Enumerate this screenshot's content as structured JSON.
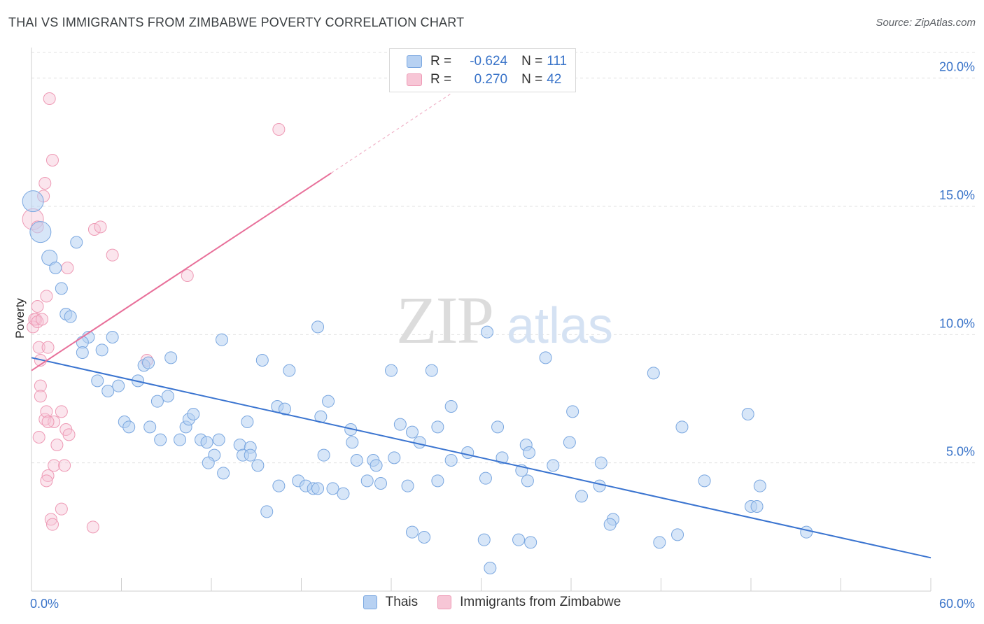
{
  "title": "THAI VS IMMIGRANTS FROM ZIMBABWE POVERTY CORRELATION CHART",
  "source": "Source: ZipAtlas.com",
  "legend_box": {
    "rows": [
      {
        "r_label": "R =",
        "r_value": "-0.624",
        "n_label": "N =",
        "n_value": "111"
      },
      {
        "r_label": "R =",
        "r_value": "0.270",
        "n_label": "N =",
        "n_value": "42"
      }
    ]
  },
  "bottom_legend": [
    "Thais",
    "Immigrants from Zimbabwe"
  ],
  "colors": {
    "blue_fill": "#b7d1f2",
    "blue_stroke": "#7aa7e0",
    "blue_line": "#3a74d0",
    "pink_fill": "#f7c6d6",
    "pink_stroke": "#ee9ab5",
    "pink_line": "#e8709a",
    "axis_label": "#3a74c9",
    "grid": "#e0e0e0"
  },
  "chart_data": {
    "type": "scatter",
    "title": "THAI VS IMMIGRANTS FROM ZIMBABWE POVERTY CORRELATION CHART",
    "ylabel": "Poverty",
    "xlim": [
      0,
      60
    ],
    "ylim": [
      0,
      21
    ],
    "x_tick_labels": [
      "0.0%",
      "60.0%"
    ],
    "y_ticks": [
      5,
      10,
      15,
      20
    ],
    "y_tick_labels": [
      "5.0%",
      "10.0%",
      "15.0%",
      "20.0%"
    ],
    "grid": "horizontal dashed",
    "legend": "top-center",
    "watermark": "ZIPatlas",
    "series": [
      {
        "name": "Thais",
        "r": -0.624,
        "n": 111,
        "trend": {
          "x0": 0,
          "y0": 9.1,
          "x1": 60,
          "y1": 1.3
        },
        "points": [
          [
            0.1,
            15.2,
            3
          ],
          [
            0.6,
            14.0,
            3
          ],
          [
            1.2,
            13.0,
            2
          ],
          [
            1.6,
            12.6,
            1
          ],
          [
            3.0,
            13.6,
            1
          ],
          [
            2.0,
            11.8,
            1
          ],
          [
            2.3,
            10.8,
            1
          ],
          [
            2.6,
            10.7,
            1
          ],
          [
            3.8,
            9.9,
            1
          ],
          [
            5.4,
            9.9,
            1
          ],
          [
            3.4,
            9.7,
            1
          ],
          [
            3.4,
            9.3,
            1
          ],
          [
            4.7,
            9.4,
            1
          ],
          [
            9.3,
            9.1,
            1
          ],
          [
            7.5,
            8.8,
            1
          ],
          [
            7.8,
            8.9,
            1
          ],
          [
            12.7,
            9.8,
            1
          ],
          [
            15.4,
            9.0,
            1
          ],
          [
            19.1,
            10.3,
            1
          ],
          [
            30.4,
            10.1,
            1
          ],
          [
            34.3,
            9.1,
            1
          ],
          [
            17.2,
            8.6,
            1
          ],
          [
            24.0,
            8.6,
            1
          ],
          [
            26.7,
            8.6,
            1
          ],
          [
            41.5,
            8.5,
            1
          ],
          [
            4.4,
            8.2,
            1
          ],
          [
            7.1,
            8.2,
            1
          ],
          [
            5.1,
            7.8,
            1
          ],
          [
            5.8,
            8.0,
            1
          ],
          [
            8.4,
            7.4,
            1
          ],
          [
            9.1,
            7.6,
            1
          ],
          [
            16.4,
            7.2,
            1
          ],
          [
            16.9,
            7.1,
            1
          ],
          [
            19.8,
            7.4,
            1
          ],
          [
            28.0,
            7.2,
            1
          ],
          [
            36.1,
            7.0,
            1
          ],
          [
            47.8,
            6.9,
            1
          ],
          [
            19.3,
            6.8,
            1
          ],
          [
            6.2,
            6.6,
            1
          ],
          [
            6.5,
            6.4,
            1
          ],
          [
            7.9,
            6.4,
            1
          ],
          [
            10.3,
            6.4,
            1
          ],
          [
            10.5,
            6.7,
            1
          ],
          [
            10.8,
            6.9,
            1
          ],
          [
            14.4,
            6.6,
            1
          ],
          [
            21.3,
            6.3,
            1
          ],
          [
            24.6,
            6.5,
            1
          ],
          [
            25.4,
            6.2,
            1
          ],
          [
            27.1,
            6.4,
            1
          ],
          [
            31.1,
            6.4,
            1
          ],
          [
            43.4,
            6.4,
            1
          ],
          [
            8.6,
            5.9,
            1
          ],
          [
            9.9,
            5.9,
            1
          ],
          [
            11.3,
            5.9,
            1
          ],
          [
            11.7,
            5.8,
            1
          ],
          [
            12.5,
            5.9,
            1
          ],
          [
            13.9,
            5.7,
            1
          ],
          [
            14.6,
            5.6,
            1
          ],
          [
            21.4,
            5.8,
            1
          ],
          [
            25.9,
            5.8,
            1
          ],
          [
            33.0,
            5.7,
            1
          ],
          [
            35.9,
            5.8,
            1
          ],
          [
            14.1,
            5.3,
            1
          ],
          [
            12.2,
            5.3,
            1
          ],
          [
            11.8,
            5.0,
            1
          ],
          [
            14.6,
            5.3,
            1
          ],
          [
            15.1,
            4.9,
            1
          ],
          [
            19.5,
            5.3,
            1
          ],
          [
            21.7,
            5.1,
            1
          ],
          [
            22.8,
            5.1,
            1
          ],
          [
            23.0,
            4.9,
            1
          ],
          [
            24.2,
            5.2,
            1
          ],
          [
            28.0,
            5.1,
            1
          ],
          [
            29.1,
            5.4,
            1
          ],
          [
            31.4,
            5.2,
            1
          ],
          [
            33.2,
            5.4,
            1
          ],
          [
            34.8,
            4.9,
            1
          ],
          [
            38.0,
            5.0,
            1
          ],
          [
            32.7,
            4.7,
            1
          ],
          [
            30.3,
            4.4,
            1
          ],
          [
            12.8,
            4.6,
            1
          ],
          [
            16.5,
            4.1,
            1
          ],
          [
            17.8,
            4.3,
            1
          ],
          [
            18.3,
            4.1,
            1
          ],
          [
            18.8,
            4.0,
            1
          ],
          [
            19.1,
            4.0,
            1
          ],
          [
            20.1,
            4.0,
            1
          ],
          [
            20.8,
            3.8,
            1
          ],
          [
            22.4,
            4.3,
            1
          ],
          [
            23.3,
            4.2,
            1
          ],
          [
            25.1,
            4.1,
            1
          ],
          [
            27.1,
            4.3,
            1
          ],
          [
            33.1,
            4.3,
            1
          ],
          [
            36.7,
            3.7,
            1
          ],
          [
            37.9,
            4.1,
            1
          ],
          [
            44.9,
            4.3,
            1
          ],
          [
            48.6,
            4.1,
            1
          ],
          [
            48.0,
            3.3,
            1
          ],
          [
            48.4,
            3.3,
            1
          ],
          [
            38.8,
            2.8,
            1
          ],
          [
            38.6,
            2.6,
            1
          ],
          [
            15.7,
            3.1,
            1
          ],
          [
            25.4,
            2.3,
            1
          ],
          [
            26.2,
            2.1,
            1
          ],
          [
            30.2,
            2.0,
            1
          ],
          [
            32.5,
            2.0,
            1
          ],
          [
            33.3,
            1.9,
            1
          ],
          [
            41.9,
            1.9,
            1
          ],
          [
            43.1,
            2.2,
            1
          ],
          [
            51.7,
            2.3,
            1
          ],
          [
            30.6,
            0.9,
            1
          ]
        ]
      },
      {
        "name": "Immigrants from Zimbabwe",
        "r": 0.27,
        "n": 42,
        "trend": {
          "x0": 0,
          "y0": 8.6,
          "x1": 20,
          "y1": 16.3,
          "dashed_to": {
            "x": 28,
            "y": 19.4
          }
        },
        "points": [
          [
            0.1,
            14.5,
            3
          ],
          [
            0.3,
            10.6,
            1
          ],
          [
            0.1,
            10.3,
            1
          ],
          [
            0.2,
            10.6,
            1
          ],
          [
            0.4,
            10.5,
            1
          ],
          [
            0.5,
            9.5,
            1
          ],
          [
            0.6,
            9.0,
            1
          ],
          [
            1.1,
            9.5,
            1
          ],
          [
            0.4,
            11.1,
            1
          ],
          [
            1.0,
            11.5,
            1
          ],
          [
            0.8,
            15.4,
            1
          ],
          [
            0.9,
            15.9,
            1
          ],
          [
            1.4,
            16.8,
            1
          ],
          [
            1.2,
            19.2,
            1
          ],
          [
            0.4,
            14.2,
            1
          ],
          [
            4.2,
            14.1,
            1
          ],
          [
            4.6,
            14.2,
            1
          ],
          [
            5.4,
            13.1,
            1
          ],
          [
            2.4,
            12.6,
            1
          ],
          [
            10.4,
            12.3,
            1
          ],
          [
            16.5,
            18.0,
            1
          ],
          [
            7.7,
            9.0,
            1
          ],
          [
            0.6,
            8.0,
            1
          ],
          [
            0.6,
            7.6,
            1
          ],
          [
            2.0,
            7.0,
            1
          ],
          [
            0.9,
            6.7,
            1
          ],
          [
            1.5,
            6.6,
            1
          ],
          [
            1.0,
            7.0,
            1
          ],
          [
            2.3,
            6.3,
            1
          ],
          [
            2.5,
            6.1,
            1
          ],
          [
            0.5,
            6.0,
            1
          ],
          [
            1.7,
            5.7,
            1
          ],
          [
            1.5,
            4.9,
            1
          ],
          [
            2.2,
            4.9,
            1
          ],
          [
            1.1,
            4.5,
            1
          ],
          [
            1.0,
            4.3,
            1
          ],
          [
            2.0,
            3.2,
            1
          ],
          [
            1.3,
            2.8,
            1
          ],
          [
            1.4,
            2.6,
            1
          ],
          [
            4.1,
            2.5,
            1
          ],
          [
            1.1,
            6.6,
            1
          ],
          [
            0.7,
            10.6,
            1
          ]
        ]
      }
    ]
  }
}
